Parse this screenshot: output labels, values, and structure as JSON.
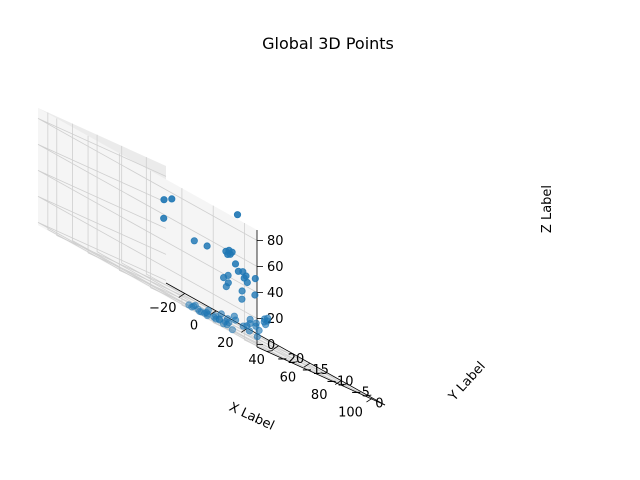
{
  "chart_data": {
    "type": "scatter",
    "projection": "3d",
    "title": "Global 3D Points",
    "xlabel": "X Label",
    "ylabel": "Y Label",
    "zlabel": "Z Label",
    "xlim": [
      -32,
      108
    ],
    "ylim": [
      -22,
      4
    ],
    "zlim": [
      -2,
      88
    ],
    "xticks": [
      -20,
      0,
      20,
      40,
      60,
      80,
      100
    ],
    "yticks": [
      -20,
      -15,
      -10,
      -5,
      0
    ],
    "zticks": [
      0,
      20,
      40,
      60,
      80
    ],
    "grid": true,
    "marker_color": "#1f77b4",
    "points": [
      {
        "x": -27,
        "y": 2,
        "z": 62
      },
      {
        "x": -22,
        "y": 2,
        "z": 66
      },
      {
        "x": -24,
        "y": 1,
        "z": 48
      },
      {
        "x": 20,
        "y": 2,
        "z": 82
      },
      {
        "x": 5,
        "y": -2,
        "z": 45
      },
      {
        "x": 10,
        "y": -1,
        "z": 46
      },
      {
        "x": 22,
        "y": -1,
        "z": 50
      },
      {
        "x": 24,
        "y": -1,
        "z": 52
      },
      {
        "x": 26,
        "y": -1,
        "z": 52
      },
      {
        "x": 20,
        "y": 0,
        "z": 48
      },
      {
        "x": 25,
        "y": 0,
        "z": 44
      },
      {
        "x": 28,
        "y": -2,
        "z": 50
      },
      {
        "x": 30,
        "y": -1,
        "z": 40
      },
      {
        "x": 36,
        "y": -2,
        "z": 42
      },
      {
        "x": 38,
        "y": -2,
        "z": 40
      },
      {
        "x": 40,
        "y": -3,
        "z": 38
      },
      {
        "x": 42,
        "y": -3,
        "z": 36
      },
      {
        "x": 44,
        "y": -2,
        "z": 42
      },
      {
        "x": 30,
        "y": -4,
        "z": 30
      },
      {
        "x": 33,
        "y": -4,
        "z": 28
      },
      {
        "x": 36,
        "y": -5,
        "z": 34
      },
      {
        "x": 45,
        "y": -5,
        "z": 28
      },
      {
        "x": 50,
        "y": -4,
        "z": 30
      },
      {
        "x": 38,
        "y": -6,
        "z": 25
      },
      {
        "x": 48,
        "y": -6,
        "z": 22
      },
      {
        "x": 75,
        "y": -10,
        "z": 18
      },
      {
        "x": 77,
        "y": -10,
        "z": 20
      },
      {
        "x": 78,
        "y": -11,
        "z": 16
      },
      {
        "x": 80,
        "y": -11,
        "z": 18
      },
      {
        "x": 82,
        "y": -12,
        "z": 15
      },
      {
        "x": 76,
        "y": -12,
        "z": 12
      },
      {
        "x": 79,
        "y": -13,
        "z": 10
      },
      {
        "x": 81,
        "y": -13,
        "z": 8
      },
      {
        "x": 74,
        "y": -14,
        "z": 5
      },
      {
        "x": 78,
        "y": -14,
        "z": 4
      },
      {
        "x": 83,
        "y": -14,
        "z": 3
      },
      {
        "x": 60,
        "y": -14,
        "z": 5
      },
      {
        "x": 64,
        "y": -14,
        "z": 4
      },
      {
        "x": 68,
        "y": -15,
        "z": 2
      },
      {
        "x": 62,
        "y": -15,
        "z": 0
      },
      {
        "x": 65,
        "y": -16,
        "z": 1
      },
      {
        "x": 70,
        "y": -16,
        "z": 0
      },
      {
        "x": 58,
        "y": -16,
        "z": 3
      },
      {
        "x": 60,
        "y": -17,
        "z": 1
      },
      {
        "x": 66,
        "y": -17,
        "z": 0
      },
      {
        "x": 72,
        "y": -17,
        "z": 2
      },
      {
        "x": 56,
        "y": -18,
        "z": 2
      },
      {
        "x": 62,
        "y": -18,
        "z": 0
      },
      {
        "x": 68,
        "y": -18,
        "z": 1
      },
      {
        "x": 74,
        "y": -18,
        "z": 0
      },
      {
        "x": 55,
        "y": -19,
        "z": 0
      },
      {
        "x": 58,
        "y": -19,
        "z": 1
      },
      {
        "x": 63,
        "y": -19,
        "z": 0
      },
      {
        "x": 67,
        "y": -19,
        "z": 1
      },
      {
        "x": 60,
        "y": -20,
        "z": 0
      },
      {
        "x": 65,
        "y": -20,
        "z": 0
      },
      {
        "x": 70,
        "y": -20,
        "z": 0
      },
      {
        "x": 64,
        "y": -20,
        "z": 1
      },
      {
        "x": 72,
        "y": -19,
        "z": 3
      },
      {
        "x": 86,
        "y": -20,
        "z": 0
      },
      {
        "x": 70,
        "y": -12,
        "z": 6
      },
      {
        "x": 72,
        "y": -12,
        "z": 9
      },
      {
        "x": 66,
        "y": -13,
        "z": 6
      },
      {
        "x": 62,
        "y": -12,
        "z": 8
      },
      {
        "x": 69,
        "y": -11,
        "z": 12
      }
    ]
  }
}
